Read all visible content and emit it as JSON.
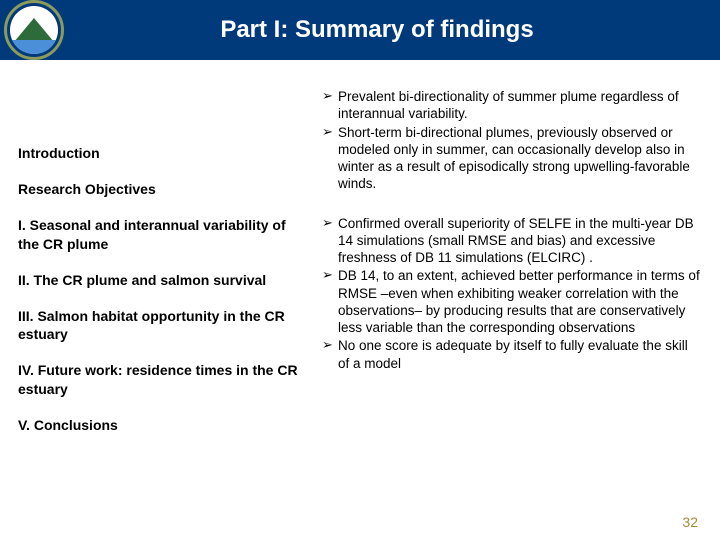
{
  "header": {
    "title": "Part I: Summary of findings",
    "bg_color": "#003a7a",
    "text_color": "#ffffff"
  },
  "nav": {
    "items": [
      "Introduction",
      "Research Objectives",
      "I. Seasonal and interannual variability of the CR plume",
      "II. The CR plume and salmon survival",
      "III. Salmon habitat opportunity in the CR estuary",
      "IV. Future work: residence times in the CR estuary",
      "V. Conclusions"
    ]
  },
  "bullets": {
    "group1": [
      "Prevalent bi-directionality of summer plume regardless of interannual variability.",
      "Short-term bi-directional plumes, previously observed or modeled only in summer, can occasionally develop also in winter as a result of episodically strong upwelling-favorable winds."
    ],
    "group2": [
      "Confirmed overall superiority of SELFE in the multi-year DB 14 simulations (small RMSE and bias) and excessive freshness of DB 11 simulations (ELCIRC) .",
      "DB 14, to an extent, achieved better performance in terms of RMSE –even when exhibiting weaker correlation with the observations– by producing results that are conservatively less variable than the corresponding observations",
      "No one score is adequate by itself to fully evaluate the skill of a model"
    ]
  },
  "page_number": "32"
}
